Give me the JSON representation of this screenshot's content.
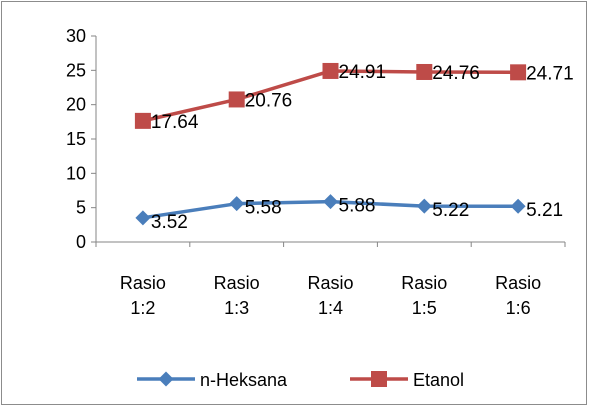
{
  "chart_data": {
    "type": "line",
    "categories": [
      [
        "Rasio",
        "1:2"
      ],
      [
        "Rasio",
        "1:3"
      ],
      [
        "Rasio",
        "1:4"
      ],
      [
        "Rasio",
        "1:5"
      ],
      [
        "Rasio",
        "1:6"
      ]
    ],
    "series": [
      {
        "name": "n-Heksana",
        "values": [
          3.52,
          5.58,
          5.88,
          5.22,
          5.21
        ],
        "labels": [
          "3.52",
          "5.58",
          "5.88",
          "5.22",
          "5.21"
        ],
        "color": "#4a7ebb",
        "marker": "diamond"
      },
      {
        "name": "Etanol",
        "values": [
          17.64,
          20.76,
          24.91,
          24.76,
          24.71
        ],
        "labels": [
          "17.64",
          "20.76",
          "24.91",
          "24.76",
          "24.71"
        ],
        "color": "#be4b48",
        "marker": "square"
      }
    ],
    "ylim": [
      0,
      30
    ],
    "yticks": [
      0,
      5,
      10,
      15,
      20,
      25,
      30
    ],
    "ytick_labels": [
      "0",
      "5",
      "10",
      "15",
      "20",
      "25",
      "30"
    ],
    "grid": false,
    "legend": "bottom"
  }
}
